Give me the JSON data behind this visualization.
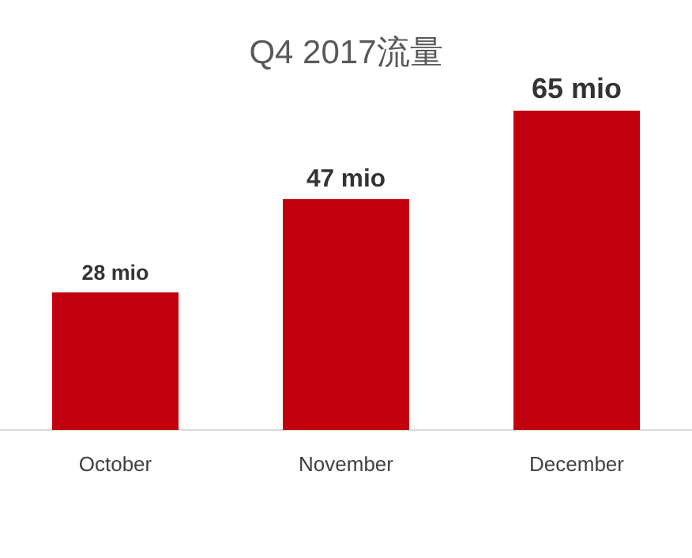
{
  "chart_data": {
    "type": "bar",
    "title": "Q4 2017流量",
    "categories": [
      "October",
      "November",
      "December"
    ],
    "series": [
      {
        "color": "#c0000c",
        "values": [
          28,
          47,
          65
        ],
        "value_labels": [
          "28 mio",
          "47 mio",
          "65 mio"
        ]
      }
    ]
  }
}
